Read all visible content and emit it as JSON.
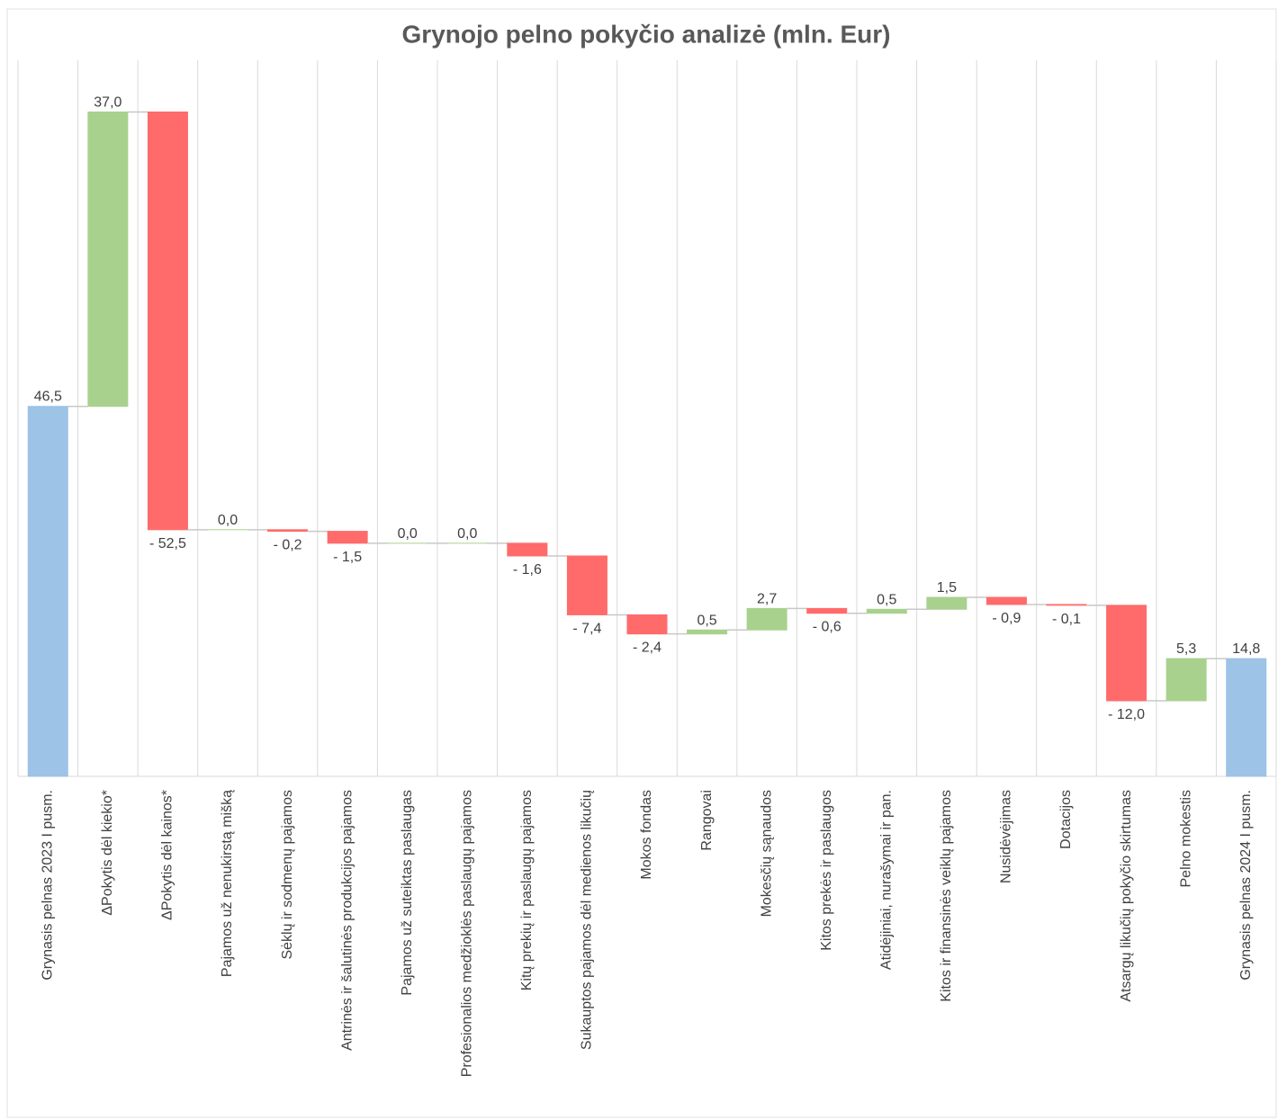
{
  "chart_data": {
    "type": "waterfall",
    "title": "Grynojo pelno pokyčio analizė (mln. Eur)",
    "categories": [
      "Grynasis pelnas 2023 I pusm.",
      "ΔPokytis dėl kiekio*",
      "ΔPokytis dėl kainos*",
      "Pajamos už nenukirstą mišką",
      "Sėklų ir sodmenų pajamos",
      "Antrinės ir šalutinės produkcijos pajamos",
      "Pajamos už suteiktas paslaugas",
      "Profesionalios medžioklės paslaugų pajamos",
      "Kitų prekių ir paslaugų pajamos",
      "Sukauptos pajamos dėl medienos likučių",
      "Mokos fondas",
      "Rangovai",
      "Mokesčių sąnaudos",
      "Kitos prekės ir paslaugos",
      "Atidėjiniai, nurašymai ir pan.",
      "Kitos ir finansinės veiklų pajamos",
      "Nusidėvėjimas",
      "Dotacijos",
      "Atsargų likučių pokyčio skirtumas",
      "Pelno mokestis",
      "Grynasis pelnas 2024 I pusm."
    ],
    "values": [
      46.5,
      37.0,
      -52.5,
      0.0,
      -0.2,
      -1.5,
      0.0,
      0.0,
      -1.6,
      -7.4,
      -2.4,
      0.5,
      2.7,
      -0.6,
      0.5,
      1.5,
      -0.9,
      -0.1,
      -12.0,
      5.3,
      14.8
    ],
    "value_labels": [
      "46,5",
      "37,0",
      "- 52,5",
      "0,0",
      "- 0,2",
      "- 1,5",
      "0,0",
      "0,0",
      "- 1,6",
      "- 7,4",
      "- 2,4",
      "0,5",
      "2,7",
      "- 0,6",
      "0,5",
      "1,5",
      "- 0,9",
      "- 0,1",
      "- 12,0",
      "5,3",
      "14,8"
    ],
    "colors": [
      "#9dc3e6",
      "#a9d18e",
      "#ff6b6b",
      "#a9d18e",
      "#ff6b6b",
      "#ff6b6b",
      "#a9d18e",
      "#a9d18e",
      "#ff6b6b",
      "#ff6b6b",
      "#ff6b6b",
      "#a9d18e",
      "#a9d18e",
      "#ff6b6b",
      "#a9d18e",
      "#a9d18e",
      "#ff6b6b",
      "#ff6b6b",
      "#ff6b6b",
      "#a9d18e",
      "#9dc3e6"
    ],
    "ylim": [
      0,
      90
    ]
  }
}
